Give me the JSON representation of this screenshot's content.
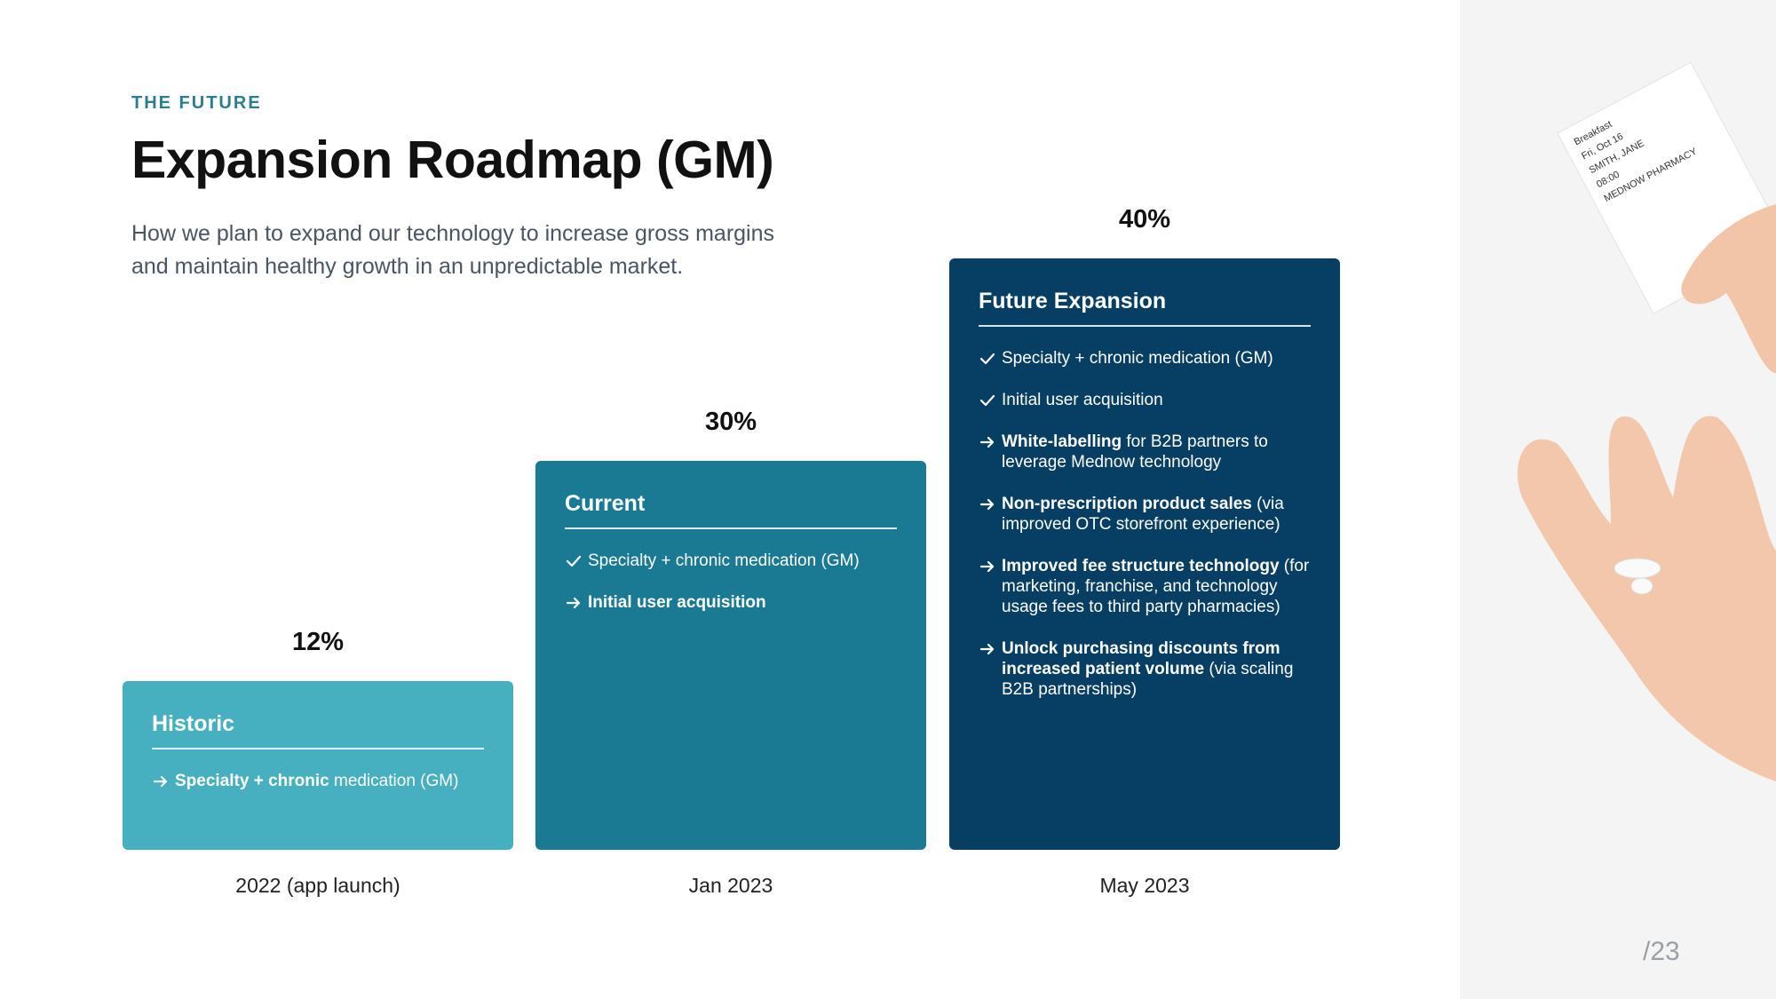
{
  "header": {
    "eyebrow": "THE FUTURE",
    "title": "Expansion Roadmap (GM)",
    "subtitle": [
      "How we plan to expand our technology to increase gross margins",
      "and maintain healthy growth in an unpredictable market."
    ]
  },
  "cards": [
    {
      "title": "Historic",
      "percent": "12%",
      "date": "2022 (app launch)",
      "items": [
        {
          "icon": "arrow",
          "parts": [
            {
              "text": "Specialty + chronic",
              "bold": true
            },
            {
              "text": " medication (GM)",
              "bold": false
            }
          ]
        }
      ]
    },
    {
      "title": "Current",
      "percent": "30%",
      "date": "Jan 2023",
      "items": [
        {
          "icon": "check",
          "parts": [
            {
              "text": "Specialty + chronic medication (GM)",
              "bold": false
            }
          ]
        },
        {
          "icon": "arrow",
          "parts": [
            {
              "text": "Initial user acquisition",
              "bold": true
            }
          ]
        }
      ]
    },
    {
      "title": "Future Expansion",
      "percent": "40%",
      "date": "May 2023",
      "items": [
        {
          "icon": "check",
          "parts": [
            {
              "text": "Specialty + chronic medication (GM)",
              "bold": false
            }
          ]
        },
        {
          "icon": "check",
          "parts": [
            {
              "text": "Initial user acquisition",
              "bold": false
            }
          ]
        },
        {
          "icon": "arrow",
          "parts": [
            {
              "text": "White-labelling",
              "bold": true
            },
            {
              "text": " for B2B partners to leverage Mednow technology",
              "bold": false
            }
          ]
        },
        {
          "icon": "arrow",
          "parts": [
            {
              "text": "Non-prescription product sales",
              "bold": true
            },
            {
              "text": " (via improved OTC storefront experience)",
              "bold": false
            }
          ]
        },
        {
          "icon": "arrow",
          "parts": [
            {
              "text": "Improved fee structure technology",
              "bold": true
            },
            {
              "text": " (for marketing, franchise, and technology usage fees to third party pharmacies)",
              "bold": false
            }
          ]
        },
        {
          "icon": "arrow",
          "parts": [
            {
              "text": "Unlock purchasing discounts from increased patient volume",
              "bold": true
            },
            {
              "text": " (via scaling B2B partnerships)",
              "bold": false
            }
          ]
        }
      ]
    }
  ],
  "photo": {
    "receipt": [
      "Breakfast",
      "Fri, Oct 16",
      "SMITH, JANE",
      "08:00",
      "MEDNOW PHARMACY"
    ]
  },
  "page_number": "/23"
}
